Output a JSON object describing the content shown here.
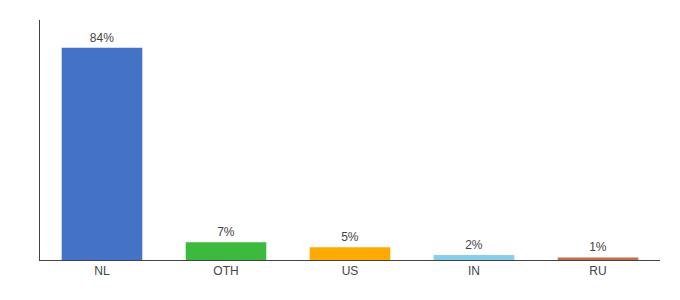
{
  "chart_data": {
    "type": "bar",
    "categories": [
      "NL",
      "OTH",
      "US",
      "IN",
      "RU"
    ],
    "values": [
      84,
      7,
      5,
      2,
      1
    ],
    "value_labels": [
      "84%",
      "7%",
      "5%",
      "2%",
      "1%"
    ],
    "data_labels": true,
    "colors": [
      "#4472c4",
      "#3dba3d",
      "#ffaa00",
      "#87ceeb",
      "#c0704a"
    ],
    "ylim": [
      0,
      95
    ],
    "yticks": [],
    "tick_labels": "x",
    "grid": false
  }
}
